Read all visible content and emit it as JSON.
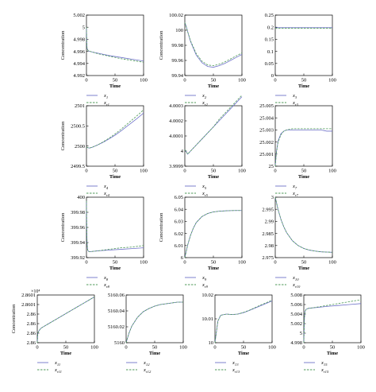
{
  "colors": {
    "real": "#6f72c9",
    "est": "#4f9a5a",
    "axis": "#000000"
  },
  "chart_data": [
    {
      "type": "line",
      "name": "x1",
      "xlabel": "Time",
      "ylabel": "Concentration",
      "xlim": [
        0,
        100
      ],
      "ylim": [
        4.992,
        5.002
      ],
      "xticks": [
        "0",
        "50",
        "100"
      ],
      "yticks": [
        "4.992",
        "4.994",
        "4.996",
        "4.998",
        "5",
        "5.002"
      ],
      "legend": {
        "real": "x",
        "real_sub": "1",
        "est": "x",
        "est_sub": "r1"
      },
      "series": [
        {
          "x": [
            0,
            0.5,
            1,
            3,
            6,
            10,
            20,
            40,
            60,
            80,
            100
          ],
          "y": [
            5.0,
            4.9975,
            4.9965,
            4.9961,
            4.996,
            4.9959,
            4.9957,
            4.9953,
            4.995,
            4.9947,
            4.9944
          ]
        },
        {
          "x": [
            0,
            0.5,
            1,
            3,
            6,
            10,
            20,
            40,
            60,
            80,
            100
          ],
          "y": [
            5.0,
            4.9975,
            4.9965,
            4.9961,
            4.996,
            4.9959,
            4.9956,
            4.9952,
            4.9948,
            4.9945,
            4.9942
          ]
        }
      ]
    },
    {
      "type": "line",
      "name": "x2",
      "xlabel": "Time",
      "ylabel": "Concentration",
      "xlim": [
        0,
        100
      ],
      "ylim": [
        99.94,
        100.02
      ],
      "xticks": [
        "0",
        "50",
        "100"
      ],
      "yticks": [
        "99.94",
        "99.96",
        "99.98",
        "100",
        "100.02"
      ],
      "legend": {
        "real": "x",
        "real_sub": "2",
        "est": "x",
        "est_sub": "r2"
      },
      "series": [
        {
          "x": [
            0,
            2,
            5,
            10,
            20,
            30,
            40,
            50,
            60,
            70,
            80,
            90,
            100
          ],
          "y": [
            100.01,
            100.006,
            99.998,
            99.985,
            99.967,
            99.957,
            99.952,
            99.951,
            99.953,
            99.956,
            99.96,
            99.964,
            99.968
          ]
        },
        {
          "x": [
            0,
            2,
            5,
            10,
            20,
            30,
            40,
            50,
            60,
            70,
            80,
            90,
            100
          ],
          "y": [
            100.01,
            100.006,
            99.998,
            99.986,
            99.969,
            99.959,
            99.954,
            99.953,
            99.955,
            99.958,
            99.962,
            99.966,
            99.97
          ]
        }
      ]
    },
    {
      "type": "line",
      "name": "x3",
      "xlabel": "Time",
      "ylabel": "",
      "xlim": [
        0,
        100
      ],
      "ylim": [
        0,
        0.25
      ],
      "xticks": [
        "0",
        "50",
        "100"
      ],
      "yticks": [
        "0",
        "0.05",
        "0.1",
        "0.15",
        "0.2",
        "0.25"
      ],
      "legend": {
        "real": "x",
        "real_sub": "3",
        "est": "x",
        "est_sub": "r3"
      },
      "series": [
        {
          "x": [
            0,
            100
          ],
          "y": [
            0.198,
            0.198
          ]
        },
        {
          "x": [
            0,
            100
          ],
          "y": [
            0.196,
            0.196
          ]
        }
      ]
    },
    {
      "type": "line",
      "name": "x4",
      "xlabel": "Time",
      "ylabel": "Concentration",
      "xlim": [
        0,
        100
      ],
      "ylim": [
        2499.5,
        2501
      ],
      "xticks": [
        "0",
        "50",
        "100"
      ],
      "yticks": [
        "2499.5",
        "2500",
        "2500.5",
        "2501"
      ],
      "legend": {
        "real": "x",
        "real_sub": "4",
        "est": "x",
        "est_sub": "r4"
      },
      "series": [
        {
          "x": [
            0,
            5,
            10,
            20,
            30,
            40,
            50,
            60,
            70,
            80,
            90,
            100
          ],
          "y": [
            2499.97,
            2499.95,
            2499.97,
            2500.03,
            2500.1,
            2500.18,
            2500.27,
            2500.37,
            2500.48,
            2500.59,
            2500.7,
            2500.82
          ]
        },
        {
          "x": [
            0,
            5,
            10,
            20,
            30,
            40,
            50,
            60,
            70,
            80,
            90,
            100
          ],
          "y": [
            2499.97,
            2499.95,
            2499.97,
            2500.03,
            2500.11,
            2500.2,
            2500.3,
            2500.41,
            2500.53,
            2500.65,
            2500.77,
            2500.9
          ]
        }
      ]
    },
    {
      "type": "line",
      "name": "x5",
      "xlabel": "Time",
      "ylabel": "",
      "xlim": [
        0,
        100
      ],
      "ylim": [
        3.9999,
        4.0003
      ],
      "xticks": [
        "0",
        "50",
        "100"
      ],
      "yticks": [
        "3.9999",
        "4",
        "4.0001",
        "4.0002",
        "4.0003"
      ],
      "legend": {
        "real": "x",
        "real_sub": "5",
        "est": "x",
        "est_sub": "r5"
      },
      "series": [
        {
          "x": [
            0,
            5,
            10,
            20,
            30,
            40,
            50,
            60,
            70,
            80,
            90,
            100
          ],
          "y": [
            4.00001,
            3.99998,
            4.0,
            4.00004,
            4.00008,
            4.00012,
            4.00016,
            4.0002,
            4.00024,
            4.00028,
            4.00032,
            4.00036
          ]
        },
        {
          "x": [
            0,
            5,
            10,
            20,
            30,
            40,
            50,
            60,
            70,
            80,
            90,
            100
          ],
          "y": [
            4.00001,
            3.99998,
            4.0,
            4.00004,
            4.00008,
            4.00012,
            4.00016,
            4.00021,
            4.00025,
            4.00029,
            4.00033,
            4.00037
          ]
        }
      ]
    },
    {
      "type": "line",
      "name": "x7",
      "xlabel": "Time",
      "ylabel": "",
      "xlim": [
        0,
        100
      ],
      "ylim": [
        25,
        25.005
      ],
      "xticks": [
        "0",
        "50",
        "100"
      ],
      "yticks": [
        "25",
        "25.001",
        "25.002",
        "25.003",
        "25.004",
        "25.005"
      ],
      "legend": {
        "real": "x",
        "real_sub": "7",
        "est": "x",
        "est_sub": "r7"
      },
      "series": [
        {
          "x": [
            0,
            2,
            5,
            10,
            15,
            20,
            30,
            40,
            50,
            60,
            70,
            80,
            90,
            100
          ],
          "y": [
            25.0,
            25.0012,
            25.0021,
            25.0027,
            25.0029,
            25.003,
            25.003,
            25.003,
            25.003,
            25.003,
            25.003,
            25.003,
            25.0029,
            25.0029
          ]
        },
        {
          "x": [
            0,
            2,
            5,
            10,
            15,
            20,
            30,
            40,
            50,
            60,
            70,
            80,
            90,
            100
          ],
          "y": [
            25.0,
            25.0011,
            25.002,
            25.0026,
            25.0029,
            25.003,
            25.0031,
            25.0031,
            25.0031,
            25.0031,
            25.0031,
            25.0031,
            25.0031,
            25.0031
          ]
        }
      ]
    },
    {
      "type": "line",
      "name": "x8",
      "xlabel": "Time",
      "ylabel": "Concentration",
      "xlim": [
        0,
        100
      ],
      "ylim": [
        399.92,
        400
      ],
      "xticks": [
        "0",
        "50",
        "100"
      ],
      "yticks": [
        "399.92",
        "399.94",
        "399.96",
        "399.98",
        "400"
      ],
      "legend": {
        "real": "x",
        "real_sub": "8",
        "est": "x",
        "est_sub": "r8"
      },
      "series": [
        {
          "x": [
            0,
            0.5,
            1,
            2,
            4,
            8,
            20,
            40,
            60,
            80,
            100
          ],
          "y": [
            399.995,
            399.96,
            399.94,
            399.93,
            399.928,
            399.928,
            399.929,
            399.93,
            399.931,
            399.932,
            399.933
          ]
        },
        {
          "x": [
            0,
            0.5,
            1,
            2,
            4,
            8,
            20,
            40,
            60,
            80,
            100
          ],
          "y": [
            399.995,
            399.96,
            399.94,
            399.93,
            399.928,
            399.928,
            399.929,
            399.931,
            399.933,
            399.934,
            399.936
          ]
        }
      ]
    },
    {
      "type": "line",
      "name": "x9",
      "xlabel": "Time",
      "ylabel": "Concentration",
      "xlim": [
        0,
        100
      ],
      "ylim": [
        6,
        6.05
      ],
      "xticks": [
        "0",
        "50",
        "100"
      ],
      "yticks": [
        "6",
        "6.01",
        "6.02",
        "6.03",
        "6.04",
        "6.05"
      ],
      "legend": {
        "real": "x",
        "real_sub": "9",
        "est": "x",
        "est_sub": "r9"
      },
      "series": [
        {
          "x": [
            0,
            5,
            10,
            15,
            20,
            30,
            40,
            50,
            60,
            70,
            80,
            90,
            100
          ],
          "y": [
            6.0,
            6.0105,
            6.0185,
            6.0245,
            6.029,
            6.034,
            6.0365,
            6.0378,
            6.0384,
            6.0387,
            6.0389,
            6.039,
            6.039
          ]
        },
        {
          "x": [
            0,
            5,
            10,
            15,
            20,
            30,
            40,
            50,
            60,
            70,
            80,
            90,
            100
          ],
          "y": [
            6.0,
            6.0105,
            6.0185,
            6.0245,
            6.029,
            6.034,
            6.0365,
            6.0378,
            6.0384,
            6.0387,
            6.0389,
            6.039,
            6.039
          ]
        }
      ]
    },
    {
      "type": "line",
      "name": "x10",
      "xlabel": "Time",
      "ylabel": "",
      "xlim": [
        0,
        100
      ],
      "ylim": [
        2.975,
        3
      ],
      "xticks": [
        "0",
        "50",
        "100"
      ],
      "yticks": [
        "2.975",
        "2.98",
        "2.985",
        "2.99",
        "2.995",
        "3"
      ],
      "legend": {
        "real": "x",
        "real_sub": "10",
        "est": "x",
        "est_sub": "r10"
      },
      "series": [
        {
          "x": [
            0,
            5,
            10,
            15,
            20,
            30,
            40,
            50,
            60,
            70,
            80,
            90,
            100
          ],
          "y": [
            3.0,
            2.9948,
            2.9908,
            2.9877,
            2.9853,
            2.982,
            2.98,
            2.9788,
            2.9781,
            2.9777,
            2.9774,
            2.9773,
            2.9772
          ]
        },
        {
          "x": [
            0,
            5,
            10,
            15,
            20,
            30,
            40,
            50,
            60,
            70,
            80,
            90,
            100
          ],
          "y": [
            3.0,
            2.9948,
            2.9908,
            2.9877,
            2.9853,
            2.982,
            2.98,
            2.9788,
            2.9781,
            2.9777,
            2.9774,
            2.9773,
            2.9772
          ]
        }
      ]
    },
    {
      "type": "line",
      "name": "x11",
      "xlabel": "Time",
      "ylabel": "Concentration",
      "xlim": [
        0,
        100
      ],
      "ylim": [
        2.86,
        2.8601
      ],
      "exponent": "×10⁴",
      "xticks": [
        "0",
        "50",
        "100"
      ],
      "yticks": [
        "2.86",
        "2.86",
        "2.86",
        "2.86",
        "2.8601",
        "2.8601"
      ],
      "legend": {
        "real": "x",
        "real_sub": "11",
        "est": "x",
        "est_sub": "r11"
      },
      "series": [
        {
          "x": [
            0,
            1,
            3,
            6,
            10,
            20,
            30,
            40,
            50,
            60,
            70,
            80,
            90,
            100
          ],
          "y": [
            2.86,
            2.86002,
            2.860025,
            2.86003,
            2.860033,
            2.86004,
            2.860047,
            2.860054,
            2.860061,
            2.860068,
            2.860075,
            2.860082,
            2.860089,
            2.860096
          ]
        },
        {
          "x": [
            0,
            1,
            3,
            6,
            10,
            20,
            30,
            40,
            50,
            60,
            70,
            80,
            90,
            100
          ],
          "y": [
            2.86,
            2.86002,
            2.860025,
            2.86003,
            2.860033,
            2.86004,
            2.860047,
            2.860054,
            2.860061,
            2.860068,
            2.860075,
            2.860082,
            2.860089,
            2.860096
          ]
        }
      ]
    },
    {
      "type": "line",
      "name": "x12",
      "xlabel": "Time",
      "ylabel": "",
      "xlim": [
        0,
        100
      ],
      "ylim": [
        5160,
        5160.06
      ],
      "xticks": [
        "0",
        "50",
        "100"
      ],
      "yticks": [
        "5160",
        "5160.02",
        "5160.04",
        "5160.06"
      ],
      "legend": {
        "real": "x",
        "real_sub": "12",
        "est": "x",
        "est_sub": "r12"
      },
      "series": [
        {
          "x": [
            0,
            5,
            10,
            20,
            30,
            40,
            50,
            60,
            70,
            80,
            90,
            100
          ],
          "y": [
            5160.0,
            5160.012,
            5160.021,
            5160.032,
            5160.039,
            5160.043,
            5160.046,
            5160.048,
            5160.049,
            5160.05,
            5160.051,
            5160.051
          ]
        },
        {
          "x": [
            0,
            5,
            10,
            20,
            30,
            40,
            50,
            60,
            70,
            80,
            90,
            100
          ],
          "y": [
            5160.0,
            5160.012,
            5160.021,
            5160.032,
            5160.039,
            5160.043,
            5160.046,
            5160.048,
            5160.049,
            5160.05,
            5160.051,
            5160.051
          ]
        }
      ]
    },
    {
      "type": "line",
      "name": "x13",
      "xlabel": "Time",
      "ylabel": "",
      "xlim": [
        0,
        100
      ],
      "ylim": [
        10,
        10.02
      ],
      "xticks": [
        "0",
        "50",
        "100"
      ],
      "yticks": [
        "10",
        "10.01",
        "10.02"
      ],
      "legend": {
        "real": "x",
        "real_sub": "13",
        "est": "x",
        "est_sub": "r13"
      },
      "series": [
        {
          "x": [
            0,
            5,
            10,
            20,
            30,
            40,
            50,
            60,
            70,
            80,
            90,
            100
          ],
          "y": [
            10.0,
            10.009,
            10.0115,
            10.012,
            10.0118,
            10.012,
            10.0126,
            10.0135,
            10.0145,
            10.0155,
            10.0165,
            10.0175
          ]
        },
        {
          "x": [
            0,
            5,
            10,
            20,
            30,
            40,
            50,
            60,
            70,
            80,
            90,
            100
          ],
          "y": [
            10.0,
            10.009,
            10.0115,
            10.012,
            10.0118,
            10.012,
            10.0127,
            10.0136,
            10.0147,
            10.0158,
            10.0168,
            10.0178
          ]
        }
      ]
    },
    {
      "type": "line",
      "name": "x15",
      "xlabel": "Time",
      "ylabel": "",
      "xlim": [
        0,
        100
      ],
      "ylim": [
        4.998,
        5.008
      ],
      "xticks": [
        "0",
        "50",
        "100"
      ],
      "yticks": [
        "4.998",
        "5",
        "5.002",
        "5.004",
        "5.006",
        "5.008"
      ],
      "legend": {
        "real": "x",
        "real_sub": "15",
        "est": "x",
        "est_sub": "r15"
      },
      "series": [
        {
          "x": [
            0,
            1,
            2,
            4,
            8,
            15,
            25,
            40,
            60,
            80,
            100
          ],
          "y": [
            4.998,
            5.003,
            5.0045,
            5.005,
            5.0052,
            5.0053,
            5.0054,
            5.0056,
            5.0058,
            5.006,
            5.0062
          ]
        },
        {
          "x": [
            0,
            1,
            2,
            4,
            8,
            15,
            25,
            40,
            60,
            80,
            100
          ],
          "y": [
            4.998,
            5.003,
            5.0045,
            5.005,
            5.0052,
            5.0053,
            5.0055,
            5.0058,
            5.0062,
            5.0066,
            5.007
          ]
        }
      ]
    }
  ]
}
